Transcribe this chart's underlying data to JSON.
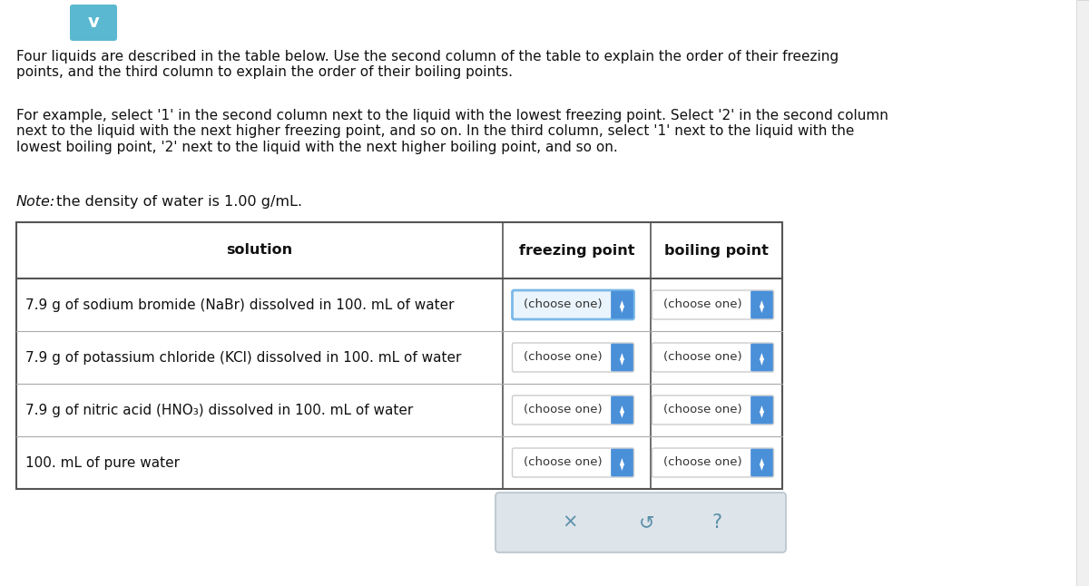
{
  "background_color": "#ffffff",
  "chevron_color": "#5ab8d0",
  "chevron_text": "v",
  "paragraph1": "Four liquids are described in the table below. Use the second column of the table to explain the order of their freezing\npoints, and the third column to explain the order of their boiling points.",
  "paragraph2": "For example, select '1' in the second column next to the liquid with the lowest freezing point. Select '2' in the second column\nnext to the liquid with the next higher freezing point, and so on. In the third column, select '1' next to the liquid with the\nlowest boiling point, '2' next to the liquid with the next higher boiling point, and so on.",
  "paragraph3_italic": "Note:",
  "paragraph3_normal": " the density of water is 1.00 g/mL.",
  "table_header": [
    "solution",
    "freezing point",
    "boiling point"
  ],
  "rows": [
    "7.9 g of sodium bromide (NaBr) dissolved in 100. mL of water",
    "7.9 g of potassium chloride (KCl) dissolved in 100. mL of water",
    "7.9 g of nitric acid (HNO₃) dissolved in 100. mL of water",
    "100. mL of pure water"
  ],
  "dropdown_text": "(choose one)",
  "row0_border_color": "#7ab8e8",
  "row0_bg": "#eaf4fc",
  "normal_border_color": "#cccccc",
  "normal_bg": "#ffffff",
  "btn_blue": "#4a90d9",
  "btn_blue_dark": "#3a7bc8",
  "table_border_color": "#555555",
  "row_divider_color": "#aaaaaa",
  "footer_bg": "#dde4ea",
  "footer_border": "#b8c4cc",
  "footer_symbols": [
    "×",
    "↺",
    "?"
  ],
  "text_fontsize": 11.0,
  "header_fontsize": 11.5,
  "note_fontsize": 11.5,
  "dd_fontsize": 9.5
}
